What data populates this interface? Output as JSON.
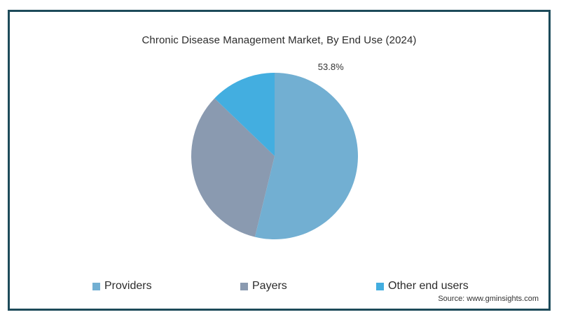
{
  "chart_data": {
    "type": "pie",
    "title": "Chronic Disease Management Market, By End Use (2024)",
    "categories": [
      "Providers",
      "Payers",
      "Other end users"
    ],
    "values": [
      53.8,
      33.4,
      12.8
    ],
    "colors": [
      "#72afd2",
      "#8a9ab0",
      "#43aee0"
    ],
    "data_labels": [
      "53.8%",
      "",
      ""
    ],
    "legend_position": "bottom"
  },
  "source": "Source: www.gminsights.com"
}
